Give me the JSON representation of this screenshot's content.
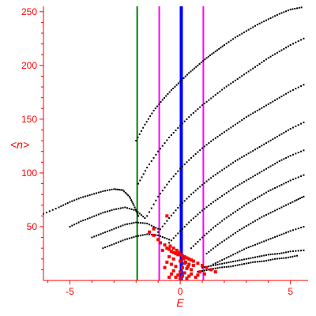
{
  "chart_data": {
    "type": "scatter",
    "title": "",
    "xlabel": "E",
    "ylabel": "<n>",
    "xlim": [
      -6.2,
      5.8
    ],
    "ylim": [
      0,
      255
    ],
    "xticks": [
      -5,
      0,
      5
    ],
    "xtick_labels": [
      "-5",
      "0",
      "5"
    ],
    "yticks": [
      50,
      100,
      150,
      200,
      250
    ],
    "ytick_labels": [
      "50",
      "100",
      "150",
      "200",
      "250"
    ],
    "grid": false,
    "legend": "none",
    "vertical_lines": [
      {
        "x": -1.95,
        "color": "#008000"
      },
      {
        "x": -0.95,
        "color": "#ff00ff"
      },
      {
        "x": 0.05,
        "color": "#0000ff"
      },
      {
        "x": 1.05,
        "color": "#ff00ff"
      }
    ],
    "series": [
      {
        "color": "#000000",
        "segments": [
          {
            "x": [
              -6.2,
              -5.5,
              -5.0,
              -4.5,
              -4.0,
              -3.5,
              -3.0,
              -2.6,
              -2.3,
              -2.1,
              -1.9
            ],
            "y": [
              62,
              68,
              73,
              77,
              80,
              83,
              85,
              84,
              78,
              70,
              60
            ]
          },
          {
            "x": [
              -5.0,
              -4.5,
              -4.0,
              -3.5,
              -3.0,
              -2.5,
              -2.0,
              -1.6
            ],
            "y": [
              50,
              55,
              59,
              63,
              66,
              68,
              65,
              58
            ]
          },
          {
            "x": [
              -4.0,
              -3.5,
              -3.0,
              -2.5,
              -2.0,
              -1.5,
              -1.0
            ],
            "y": [
              40,
              44,
              48,
              52,
              54,
              53,
              48
            ]
          },
          {
            "x": [
              -3.5,
              -3.0,
              -2.5,
              -2.0,
              -1.5,
              -1.0,
              -0.5
            ],
            "y": [
              30,
              34,
              38,
              41,
              43,
              42,
              38
            ]
          },
          {
            "x": [
              -2.0,
              -1.6,
              -1.2,
              -0.8,
              -0.4,
              0.0,
              0.4,
              0.8,
              1.2,
              1.6,
              2.0,
              2.5,
              3.0,
              3.5,
              4.0,
              4.5,
              5.0,
              5.5
            ],
            "y": [
              130,
              145,
              158,
              168,
              177,
              185,
              193,
              200,
              207,
              213,
              219,
              226,
              232,
              238,
              243,
              248,
              252,
              254
            ]
          },
          {
            "x": [
              -1.9,
              -1.5,
              -1.0,
              -0.5,
              0.0,
              0.5,
              1.0,
              1.5,
              2.0,
              2.5,
              3.0,
              3.5,
              4.0,
              4.5,
              5.0,
              5.6
            ],
            "y": [
              90,
              105,
              120,
              133,
              144,
              154,
              163,
              171,
              179,
              186,
              193,
              200,
              207,
              213,
              219,
              225
            ]
          },
          {
            "x": [
              -1.5,
              -1.0,
              -0.5,
              0.0,
              0.5,
              1.0,
              1.5,
              2.0,
              2.5,
              3.0,
              3.5,
              4.0,
              4.5,
              5.0,
              5.6
            ],
            "y": [
              60,
              78,
              92,
              104,
              114,
              123,
              131,
              138,
              145,
              152,
              158,
              164,
              170,
              176,
              182
            ]
          },
          {
            "x": [
              -1.0,
              -0.5,
              0.0,
              0.5,
              1.0,
              1.5,
              2.0,
              2.5,
              3.0,
              3.5,
              4.0,
              4.5,
              5.0,
              5.6
            ],
            "y": [
              45,
              58,
              70,
              80,
              89,
              97,
              104,
              111,
              117,
              123,
              129,
              135,
              141,
              147
            ]
          },
          {
            "x": [
              -0.5,
              0.0,
              0.5,
              1.0,
              1.5,
              2.0,
              2.5,
              3.0,
              3.5,
              4.0,
              4.5,
              5.0,
              5.6
            ],
            "y": [
              35,
              46,
              56,
              65,
              73,
              80,
              87,
              93,
              99,
              105,
              111,
              116,
              121
            ]
          },
          {
            "x": [
              0.5,
              1.0,
              1.5,
              2.0,
              2.5,
              3.0,
              3.5,
              4.0,
              4.5,
              5.0,
              5.6
            ],
            "y": [
              30,
              40,
              49,
              57,
              64,
              71,
              77,
              83,
              88,
              93,
              98
            ]
          },
          {
            "x": [
              1.2,
              1.7,
              2.2,
              2.7,
              3.2,
              3.7,
              4.2,
              4.7,
              5.2,
              5.6
            ],
            "y": [
              25,
              33,
              40,
              47,
              53,
              59,
              64,
              69,
              74,
              78
            ]
          },
          {
            "x": [
              1.5,
              2.0,
              2.5,
              3.0,
              3.5,
              4.0,
              4.5,
              5.0,
              5.6
            ],
            "y": [
              15,
              20,
              25,
              30,
              34,
              38,
              42,
              46,
              50
            ]
          },
          {
            "x": [
              1.0,
              1.5,
              2.0,
              2.5,
              3.0,
              3.5,
              4.0,
              4.5,
              5.0,
              5.6
            ],
            "y": [
              12,
              14,
              16,
              18,
              20,
              22,
              24,
              25,
              27,
              28
            ]
          },
          {
            "x": [
              0.8,
              1.3,
              1.8,
              2.3,
              2.8,
              3.3,
              3.8,
              4.3,
              4.8,
              5.3
            ],
            "y": [
              8,
              10,
              12,
              13,
              15,
              17,
              18,
              20,
              21,
              23
            ]
          }
        ]
      },
      {
        "color": "#ff0000",
        "x": [
          -1.4,
          -1.2,
          -1.0,
          -0.9,
          -0.7,
          -0.6,
          -0.5,
          -0.4,
          -0.3,
          -0.2,
          -0.1,
          0.0,
          0.1,
          0.2,
          0.3,
          0.4,
          0.5,
          0.6,
          0.8,
          1.0,
          1.2,
          1.4,
          1.6,
          -0.8,
          -0.5,
          -0.3,
          0.0,
          0.2,
          0.4,
          0.6,
          -0.6,
          -0.4,
          -0.2,
          0.1,
          0.3,
          0.5,
          -0.7,
          -0.3,
          0.0,
          0.2,
          0.5,
          0.8,
          -0.4,
          -0.1,
          0.1,
          0.4,
          0.7,
          -0.5,
          -0.2,
          0.0,
          0.3,
          -0.45,
          -0.3,
          -0.15,
          -0.05,
          0.15,
          0.25,
          0.35,
          -1.2,
          -0.6,
          0.9,
          1.1
        ],
        "y": [
          45,
          42,
          38,
          35,
          33,
          30,
          29,
          27,
          26,
          25,
          24,
          24,
          23,
          22,
          21,
          20,
          19,
          18,
          16,
          14,
          12,
          10,
          8,
          28,
          22,
          20,
          18,
          16,
          15,
          14,
          17,
          15,
          13,
          12,
          11,
          10,
          12,
          9,
          8,
          7,
          6,
          5,
          6,
          5,
          4,
          4,
          3,
          3,
          3,
          2,
          2,
          32,
          30,
          28,
          26,
          20,
          17,
          13,
          48,
          60,
          8,
          6
        ]
      }
    ]
  }
}
